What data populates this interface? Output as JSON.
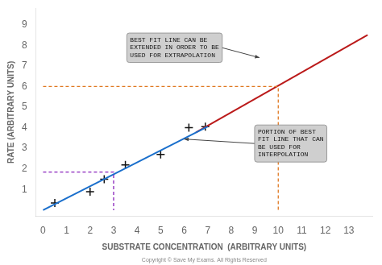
{
  "chart_data": {
    "type": "scatter",
    "xlabel": "SUBSTRATE CONCENTRATION  (ARBITRARY UNITS)",
    "ylabel": "RATE (ARBITRARY UNITS)",
    "xlim": [
      -0.3,
      14.0
    ],
    "ylim": [
      -0.3,
      9.8
    ],
    "xticks": [
      0,
      1,
      2,
      3,
      4,
      5,
      6,
      7,
      8,
      9,
      10,
      11,
      12,
      13
    ],
    "yticks": [
      1,
      2,
      3,
      4,
      5,
      6,
      7,
      8,
      9
    ],
    "grid": false,
    "series": [
      {
        "type": "line",
        "color": "#8822bb",
        "line_style": "dashed",
        "x": [
          0,
          3.0,
          3.0
        ],
        "values": [
          1.85,
          1.85,
          0
        ]
      },
      {
        "type": "line",
        "color": "#e07820",
        "line_style": "dashed",
        "x": [
          0,
          10.0,
          10.0
        ],
        "values": [
          6.0,
          6.0,
          0
        ]
      },
      {
        "type": "line",
        "color": "#1a6fcc",
        "line_style": "solid",
        "x": [
          0,
          7.0
        ],
        "values": [
          0,
          4.06
        ]
      },
      {
        "type": "line",
        "color": "#bb1a1a",
        "line_style": "solid",
        "x": [
          6.5,
          13.8
        ],
        "values": [
          3.77,
          8.5
        ]
      },
      {
        "type": "scatter",
        "color": "#111111",
        "marker": "plus",
        "x": [
          0.5,
          2.0,
          2.6,
          3.5,
          5.0,
          6.2,
          6.9
        ],
        "values": [
          0.35,
          0.9,
          1.5,
          2.2,
          2.7,
          4.0,
          4.05
        ]
      }
    ],
    "annotations": [
      {
        "text": "BEST FIT LINE CAN BE\nEXTENDED IN ORDER TO BE\nUSED FOR EXTRAPOLATION",
        "x": 9.2,
        "y": 7.4
      },
      {
        "text": "PORTION OF BEST\nFIT LINE THAT CAN\nBE USED FOR\nINTERPOLATION",
        "x": 6.0,
        "y": 3.45
      },
      {
        "text": "Copyright © Save My Exams. All Rights Reserved"
      }
    ]
  }
}
